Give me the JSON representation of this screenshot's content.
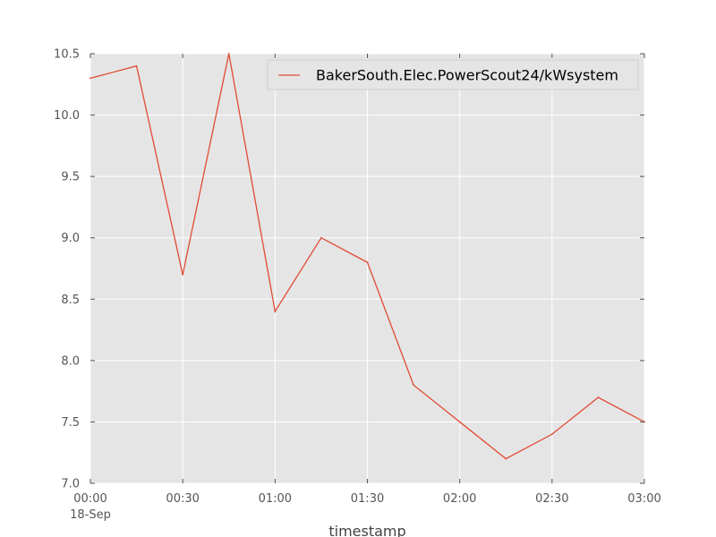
{
  "chart_data": {
    "type": "line",
    "title": "",
    "xlabel": "timestamp",
    "ylabel": "",
    "x": [
      "00:00",
      "00:15",
      "00:30",
      "00:45",
      "01:00",
      "01:15",
      "01:30",
      "01:45",
      "02:00",
      "02:15",
      "02:30",
      "02:45",
      "03:00"
    ],
    "series": [
      {
        "name": "BakerSouth.Elec.PowerScout24/kWsystem",
        "color": "#e24a33",
        "values": [
          10.3,
          10.4,
          8.7,
          10.5,
          8.4,
          9.0,
          8.8,
          7.8,
          7.5,
          7.2,
          7.4,
          7.7,
          7.5
        ]
      }
    ],
    "x_ticks": [
      {
        "value": "00:00",
        "label": "00:00",
        "sublabel": "18-Sep"
      },
      {
        "value": "00:30",
        "label": "00:30"
      },
      {
        "value": "01:00",
        "label": "01:00"
      },
      {
        "value": "01:30",
        "label": "01:30"
      },
      {
        "value": "02:00",
        "label": "02:00"
      },
      {
        "value": "02:30",
        "label": "02:30"
      },
      {
        "value": "03:00",
        "label": "03:00"
      }
    ],
    "y_ticks": [
      "7.0",
      "7.5",
      "8.0",
      "8.5",
      "9.0",
      "9.5",
      "10.0",
      "10.5"
    ],
    "ylim": [
      7.0,
      10.5
    ],
    "xlim": [
      "00:00",
      "03:00"
    ],
    "grid": true,
    "legend_position": "top-right",
    "background_color": "#e5e5e5"
  }
}
